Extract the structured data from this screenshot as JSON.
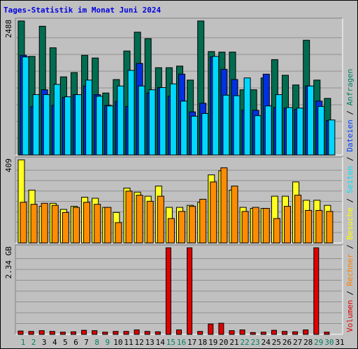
{
  "chart_data": {
    "title": "Tages-Statistik im Monat Juni 2024",
    "type": "bar",
    "days": [
      "1",
      "2",
      "3",
      "4",
      "5",
      "6",
      "7",
      "8",
      "9",
      "10",
      "11",
      "12",
      "13",
      "14",
      "15",
      "16",
      "17",
      "18",
      "19",
      "20",
      "21",
      "22",
      "23",
      "24",
      "25",
      "26",
      "27",
      "28",
      "29",
      "30",
      "31"
    ],
    "weekend_days": [
      1,
      2,
      8,
      9,
      15,
      16,
      22,
      23,
      29,
      30
    ],
    "legend": [
      {
        "label": "Volumen",
        "color": "#e00000"
      },
      {
        "label": "Rechner",
        "color": "#ff8000"
      },
      {
        "label": "Besuche",
        "color": "#ffff00"
      },
      {
        "label": "Seiten",
        "color": "#00e0ff"
      },
      {
        "label": "Dateien",
        "color": "#0040ff"
      },
      {
        "label": "Anfragen",
        "color": "#008060"
      }
    ],
    "panels": [
      {
        "name": "Anfragen / Dateien / Seiten",
        "max_label": "2488",
        "max": 2488,
        "series": [
          {
            "name": "Anfragen",
            "color": "#006c50",
            "values": [
              2488,
              1830,
              2390,
              1990,
              1450,
              1530,
              1850,
              1800,
              1150,
              1400,
              1930,
              2280,
              2160,
              1620,
              1620,
              1650,
              1390,
              2488,
              1920,
              1910,
              1910,
              1210,
              1210,
              1430,
              1770,
              1480,
              1300,
              2130,
              1390,
              1050,
              0
            ]
          },
          {
            "name": "Dateien",
            "color": "#0030e0",
            "values": [
              1850,
              900,
              1210,
              920,
              1070,
              1120,
              1280,
              1120,
              920,
              990,
              900,
              1700,
              1150,
              1250,
              1090,
              1500,
              800,
              960,
              1820,
              1590,
              1400,
              830,
              830,
              1500,
              880,
              870,
              850,
              1280,
              1000,
              640,
              0
            ]
          },
          {
            "name": "Seiten",
            "color": "#00d8ff",
            "values": [
              1820,
              1120,
              1120,
              1310,
              1080,
              1120,
              1390,
              1090,
              910,
              1280,
              1570,
              1280,
              1210,
              1250,
              1320,
              1000,
              720,
              770,
              1830,
              1110,
              1100,
              1430,
              730,
              910,
              1120,
              880,
              870,
              1280,
              900,
              650,
              0
            ]
          }
        ]
      },
      {
        "name": "Besuche / Rechner",
        "max_label": "409",
        "max": 409,
        "series": [
          {
            "name": "Besuche",
            "color": "#ffff20",
            "values": [
              409,
              260,
              180,
              195,
              165,
              180,
              225,
              220,
              175,
              150,
              270,
              250,
              230,
              280,
              175,
              175,
              185,
              200,
              335,
              355,
              260,
              175,
              170,
              170,
              230,
              230,
              300,
              210,
              210,
              185,
              0
            ]
          },
          {
            "name": "Rechner",
            "color": "#ff8c00",
            "values": [
              200,
              190,
              195,
              185,
              150,
              175,
              200,
              190,
              175,
              100,
              255,
              235,
              205,
              230,
              120,
              155,
              180,
              215,
              300,
              370,
              280,
              155,
              175,
              170,
              120,
              180,
              235,
              160,
              160,
              155,
              0
            ]
          }
        ]
      },
      {
        "name": "Volumen",
        "max_label": "2.34 GB",
        "max": 2.34,
        "series": [
          {
            "name": "Volumen",
            "color": "#e00000",
            "values": [
              0.09,
              0.08,
              0.1,
              0.08,
              0.06,
              0.07,
              0.11,
              0.1,
              0.06,
              0.08,
              0.08,
              0.12,
              0.08,
              0.07,
              2.34,
              0.12,
              2.34,
              0.08,
              0.28,
              0.3,
              0.1,
              0.12,
              0.05,
              0.06,
              0.11,
              0.08,
              0.07,
              0.12,
              2.34,
              0.06,
              0
            ]
          }
        ]
      }
    ]
  }
}
